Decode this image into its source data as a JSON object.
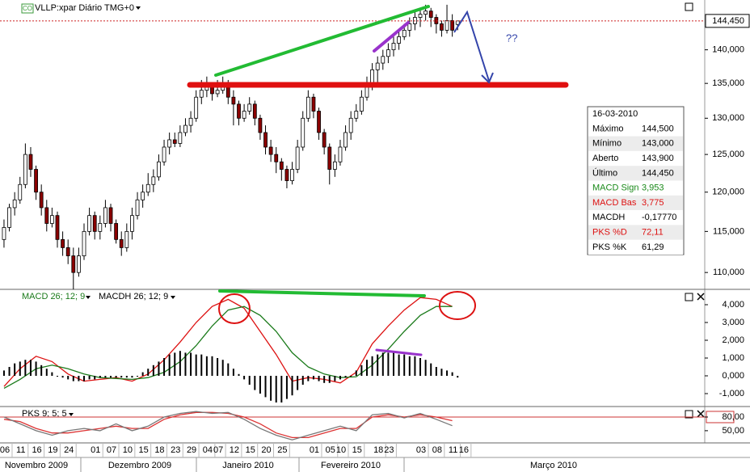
{
  "header": {
    "title": "VLLP:xpar Diário TMG+0",
    "icon": "CO"
  },
  "info_box": {
    "date": "16-03-2010",
    "rows": [
      {
        "label": "Máximo",
        "value": "144,500",
        "color": "#000000"
      },
      {
        "label": "Mínimo",
        "value": "143,000",
        "color": "#000000"
      },
      {
        "label": "Aberto",
        "value": "143,900",
        "color": "#000000"
      },
      {
        "label": "Último",
        "value": "144,450",
        "color": "#000000"
      },
      {
        "label": "MACD Sign",
        "value": "3,953",
        "color": "#1a8a1a"
      },
      {
        "label": "MACD Bas",
        "value": "3,775",
        "color": "#dd1111"
      },
      {
        "label": "MACDH",
        "value": "-0,17770",
        "color": "#000000"
      },
      {
        "label": "PKS %D",
        "value": "72,11",
        "color": "#dd1111"
      },
      {
        "label": "PKS %K",
        "value": "61,29",
        "color": "#000000"
      }
    ]
  },
  "chart_data": [
    {
      "type": "candlestick",
      "log_scale": true,
      "xlim": [
        -0.75,
        131
      ],
      "ylim": [
        108200,
        147500
      ],
      "yticks": [
        {
          "value": 140000,
          "label": "140,000"
        },
        {
          "value": 135000,
          "label": "135,000"
        },
        {
          "value": 130000,
          "label": "130,000"
        },
        {
          "value": 125000,
          "label": "125,000"
        },
        {
          "value": 120000,
          "label": "120,000"
        },
        {
          "value": 115000,
          "label": "115,000"
        },
        {
          "value": 110000,
          "label": "110,000"
        }
      ],
      "price_marker": {
        "value": 144450,
        "label": "144,450"
      },
      "up_color": "#ffffff",
      "down_color": "#8b0000",
      "annotations": [
        "??"
      ],
      "open": [
        114000,
        115500,
        118000,
        119000,
        121000,
        125000,
        123000,
        120000,
        118000,
        116000,
        117000,
        114000,
        113000,
        112000,
        110000,
        112000,
        115000,
        117000,
        115000,
        116000,
        118000,
        116000,
        114000,
        113000,
        115000,
        117000,
        119000,
        120000,
        121000,
        122000,
        124000,
        126000,
        127000,
        126500,
        128000,
        129000,
        130000,
        133000,
        134000,
        134500,
        133500,
        134000,
        135000,
        133000,
        132000,
        130000,
        131000,
        132000,
        130000,
        128000,
        126000,
        125000,
        124000,
        123000,
        121500,
        123000,
        126000,
        130000,
        133000,
        131000,
        128000,
        126000,
        123000,
        124000,
        126000,
        128000,
        130000,
        131000,
        133000,
        135000,
        137000,
        138000,
        139000,
        140000,
        141000,
        142000,
        143000,
        144000,
        145000,
        145500,
        146000,
        145000,
        144000,
        143000,
        144500,
        143900
      ],
      "high": [
        116500,
        118500,
        120000,
        122000,
        126500,
        126000,
        123500,
        121000,
        119000,
        118000,
        117500,
        115000,
        114000,
        113000,
        113000,
        116000,
        118000,
        117500,
        117000,
        119000,
        118500,
        116500,
        115000,
        116000,
        118000,
        120000,
        121000,
        122500,
        123000,
        125000,
        127000,
        128000,
        128000,
        129000,
        130000,
        131000,
        134000,
        135500,
        136000,
        135000,
        135500,
        136000,
        135500,
        134000,
        132500,
        132000,
        133000,
        132500,
        130500,
        129000,
        127000,
        126000,
        124500,
        123500,
        124000,
        127000,
        131000,
        134000,
        133500,
        131500,
        128500,
        126500,
        125000,
        127000,
        129000,
        131000,
        132000,
        134000,
        136000,
        138000,
        139000,
        140000,
        141000,
        142000,
        143000,
        144000,
        145000,
        146000,
        146500,
        147000,
        146500,
        145500,
        144500,
        147000,
        145500,
        144500
      ],
      "low": [
        113000,
        115000,
        117000,
        118500,
        120500,
        122000,
        119000,
        117000,
        115000,
        115500,
        113000,
        112000,
        111000,
        108000,
        109500,
        111500,
        114500,
        114000,
        114000,
        115500,
        115000,
        113500,
        112000,
        112500,
        114000,
        116500,
        118000,
        119500,
        120000,
        121500,
        123500,
        125000,
        126000,
        126000,
        127500,
        128000,
        129500,
        132000,
        133000,
        132500,
        133000,
        133500,
        132000,
        129000,
        129000,
        129500,
        130500,
        129000,
        127000,
        125000,
        124000,
        122500,
        121500,
        120500,
        121000,
        122500,
        125500,
        129500,
        130000,
        127000,
        125000,
        121000,
        122000,
        123500,
        125500,
        127000,
        129500,
        130500,
        132500,
        134000,
        134500,
        137000,
        138000,
        139000,
        140000,
        141500,
        142000,
        143000,
        143500,
        144500,
        143500,
        142500,
        142000,
        142500,
        142000,
        143000
      ],
      "close": [
        115500,
        118000,
        119000,
        121000,
        125000,
        123000,
        120000,
        118000,
        116000,
        117000,
        114000,
        113000,
        112000,
        110000,
        112000,
        115000,
        117000,
        115000,
        116000,
        118000,
        116000,
        114000,
        113000,
        115000,
        117000,
        119000,
        120000,
        121000,
        122000,
        124000,
        126000,
        127000,
        126500,
        128000,
        129000,
        130000,
        133000,
        134000,
        134500,
        133500,
        134000,
        135000,
        133000,
        132000,
        130000,
        131000,
        132000,
        130000,
        128000,
        126000,
        125000,
        124000,
        123000,
        121500,
        123000,
        126000,
        130000,
        133000,
        131000,
        128000,
        126000,
        123000,
        124000,
        126000,
        128000,
        130000,
        131000,
        133000,
        135000,
        137000,
        138000,
        139000,
        140000,
        141000,
        142000,
        143000,
        144000,
        145000,
        145500,
        146000,
        145000,
        144000,
        143000,
        144500,
        143000,
        144450
      ]
    },
    {
      "type": "line",
      "xlim": [
        -0.75,
        131
      ],
      "ylim": [
        -1600,
        4700
      ],
      "legend": [
        "MACD 26; 12; 9",
        "MACDH 26; 12; 9"
      ],
      "yticks": [
        {
          "value": 4000,
          "label": "4,000"
        },
        {
          "value": 3000,
          "label": "3,000"
        },
        {
          "value": 2000,
          "label": "2,000"
        },
        {
          "value": 1000,
          "label": "1,000"
        },
        {
          "value": 0,
          "label": "0,000"
        },
        {
          "value": -1000,
          "label": "-1,000"
        }
      ],
      "series": [
        {
          "type": "line",
          "color": "#dd1111",
          "x": [
            0,
            3,
            6,
            9,
            12,
            15,
            18,
            21,
            24,
            27,
            30,
            33,
            36,
            39,
            42,
            45,
            48,
            51,
            54,
            57,
            60,
            63,
            66,
            69,
            72,
            75,
            78,
            81,
            84
          ],
          "values": [
            -600,
            400,
            1100,
            800,
            100,
            -300,
            -200,
            -100,
            -300,
            100,
            900,
            1900,
            3000,
            3900,
            4300,
            3800,
            2500,
            1200,
            -300,
            -100,
            -200,
            -400,
            200,
            1800,
            2800,
            3700,
            4400,
            4300,
            3900
          ]
        },
        {
          "type": "line",
          "color": "#1a7a1a",
          "x": [
            0,
            3,
            6,
            9,
            12,
            15,
            18,
            21,
            24,
            27,
            30,
            33,
            36,
            39,
            42,
            45,
            48,
            51,
            54,
            57,
            60,
            63,
            66,
            69,
            72,
            75,
            78,
            81,
            84
          ],
          "values": [
            -700,
            -200,
            400,
            600,
            400,
            100,
            -100,
            -150,
            -200,
            -100,
            200,
            800,
            1700,
            2800,
            3700,
            3900,
            3400,
            2500,
            1300,
            500,
            100,
            -100,
            -50,
            600,
            1500,
            2500,
            3400,
            3900,
            3900
          ]
        },
        {
          "type": "bar",
          "color": "#000000",
          "values": [
            300,
            500,
            700,
            800,
            900,
            900,
            800,
            600,
            400,
            200,
            0,
            -100,
            -200,
            -300,
            -300,
            -300,
            -200,
            -200,
            -100,
            -100,
            -100,
            -100,
            -100,
            -100,
            -100,
            0,
            200,
            400,
            600,
            800,
            1000,
            1200,
            1300,
            1400,
            1300,
            1300,
            1200,
            1200,
            1100,
            1100,
            1000,
            900,
            700,
            400,
            100,
            -200,
            -500,
            -800,
            -1000,
            -1200,
            -1400,
            -1500,
            -1500,
            -1300,
            -1100,
            -800,
            -500,
            -300,
            -200,
            -300,
            -400,
            -400,
            -300,
            -200,
            -100,
            0,
            300,
            600,
            900,
            1100,
            1200,
            1300,
            1300,
            1300,
            1200,
            1200,
            1100,
            1100,
            1000,
            900,
            700,
            500,
            400,
            300,
            200,
            -100
          ]
        }
      ]
    },
    {
      "type": "line",
      "xlim": [
        -0.75,
        131
      ],
      "ylim": [
        25,
        100
      ],
      "legend": [
        "PKS 9; 5; 5"
      ],
      "yticks": [
        {
          "value": 80,
          "label": "80,00"
        },
        {
          "value": 50,
          "label": "50,00"
        }
      ],
      "series": [
        {
          "color": "#dd3333",
          "x": [
            0,
            3,
            6,
            9,
            12,
            15,
            18,
            21,
            24,
            27,
            30,
            33,
            36,
            39,
            42,
            45,
            48,
            51,
            54,
            57,
            60,
            63,
            66,
            69,
            72,
            75,
            78,
            81,
            84
          ],
          "values": [
            75,
            70,
            55,
            45,
            45,
            50,
            55,
            60,
            55,
            55,
            75,
            85,
            90,
            90,
            88,
            80,
            65,
            45,
            35,
            35,
            45,
            55,
            55,
            80,
            85,
            80,
            85,
            80,
            72
          ]
        },
        {
          "color": "#777777",
          "x": [
            0,
            3,
            6,
            9,
            12,
            15,
            18,
            21,
            24,
            27,
            30,
            33,
            36,
            39,
            42,
            45,
            48,
            51,
            54,
            57,
            60,
            63,
            66,
            69,
            72,
            75,
            78,
            81,
            84
          ],
          "values": [
            80,
            65,
            50,
            40,
            50,
            55,
            50,
            65,
            50,
            60,
            80,
            88,
            92,
            88,
            90,
            75,
            55,
            40,
            30,
            40,
            50,
            60,
            50,
            85,
            88,
            78,
            88,
            75,
            61
          ]
        }
      ],
      "xticks": [
        {
          "value": 0,
          "label": "06"
        },
        {
          "value": 3,
          "label": "11"
        },
        {
          "value": 6,
          "label": "16"
        },
        {
          "value": 9,
          "label": "19"
        },
        {
          "value": 12,
          "label": "24"
        },
        {
          "value": 17,
          "label": "01"
        },
        {
          "value": 20,
          "label": "07"
        },
        {
          "value": 23,
          "label": "10"
        },
        {
          "value": 26,
          "label": "15"
        },
        {
          "value": 29,
          "label": "18"
        },
        {
          "value": 32,
          "label": "23"
        },
        {
          "value": 35,
          "label": "29"
        },
        {
          "value": 38,
          "label": "04"
        },
        {
          "value": 40,
          "label": "07"
        },
        {
          "value": 43,
          "label": "12"
        },
        {
          "value": 46,
          "label": "15"
        },
        {
          "value": 49,
          "label": "20"
        },
        {
          "value": 52,
          "label": "25"
        },
        {
          "value": 58,
          "label": "01"
        },
        {
          "value": 61,
          "label": "05"
        },
        {
          "value": 63,
          "label": "10"
        },
        {
          "value": 66,
          "label": "15"
        },
        {
          "value": 70,
          "label": "18"
        },
        {
          "value": 72,
          "label": "23"
        },
        {
          "value": 78,
          "label": "03"
        },
        {
          "value": 81,
          "label": "08"
        },
        {
          "value": 84,
          "label": "11"
        },
        {
          "value": 86,
          "label": "16"
        }
      ],
      "months": [
        "Novembro 2009",
        "Dezembro 2009",
        "Janeiro 2010",
        "Fevereiro 2010",
        "Março 2010"
      ]
    }
  ]
}
